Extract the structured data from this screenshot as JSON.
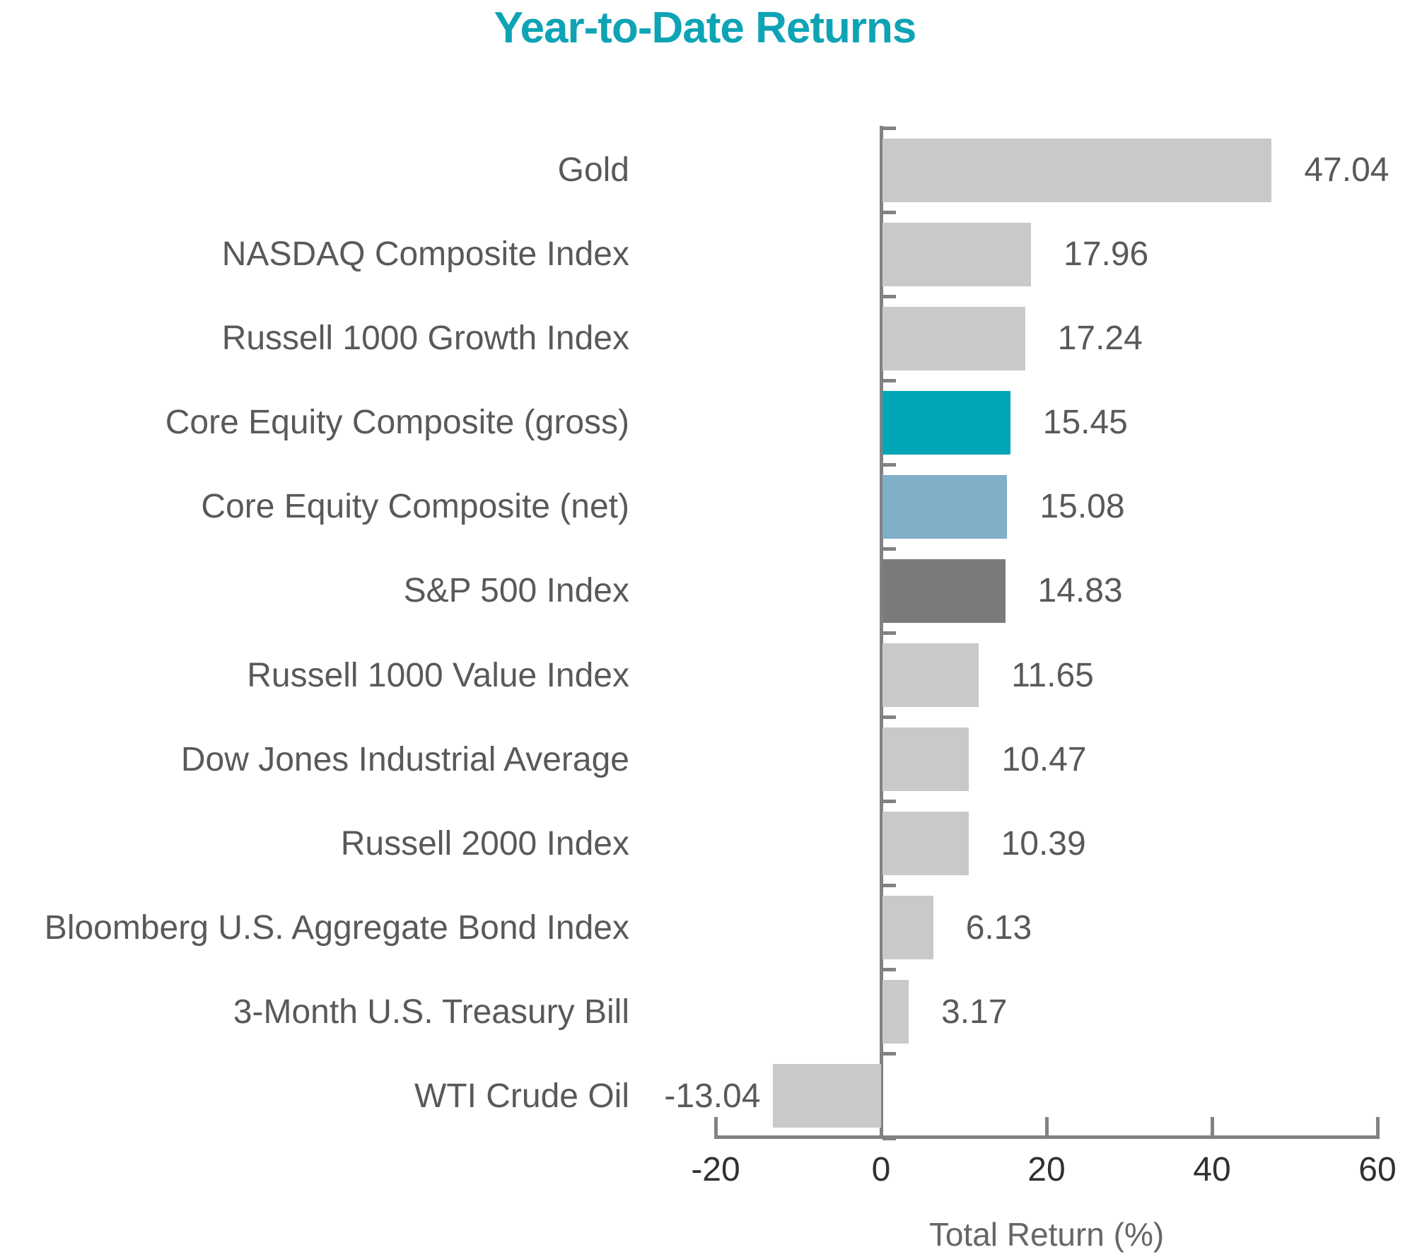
{
  "chart_data": {
    "type": "bar",
    "orientation": "horizontal",
    "title": "Year-to-Date Returns",
    "xlabel": "Total Return (%)",
    "xlim": [
      -20,
      60
    ],
    "xticks": [
      "-20",
      "0",
      "20",
      "40",
      "60"
    ],
    "xtick_values": [
      -20,
      0,
      20,
      40,
      60
    ],
    "grid": false,
    "legend": null,
    "categories": [
      "Gold",
      "NASDAQ Composite Index",
      "Russell 1000 Growth Index",
      "Core Equity Composite (gross)",
      "Core Equity Composite (net)",
      "S&P 500 Index",
      "Russell 1000 Value Index",
      "Dow Jones Industrial Average",
      "Russell 2000 Index",
      "Bloomberg U.S. Aggregate Bond Index",
      "3-Month U.S. Treasury Bill",
      "WTI Crude Oil"
    ],
    "values": [
      47.04,
      17.96,
      17.24,
      15.45,
      15.08,
      14.83,
      11.65,
      10.47,
      10.39,
      6.13,
      3.17,
      -13.04
    ],
    "value_labels": [
      "47.04",
      "17.96",
      "17.24",
      "15.45",
      "15.08",
      "14.83",
      "11.65",
      "10.47",
      "10.39",
      "6.13",
      "3.17",
      "-13.04"
    ],
    "bar_colors": [
      "#C9C9C9",
      "#C9C9C9",
      "#C9C9C9",
      "#00A6B6",
      "#80AFC7",
      "#7A7A7A",
      "#C9C9C9",
      "#C9C9C9",
      "#C9C9C9",
      "#C9C9C9",
      "#C9C9C9",
      "#C9C9C9"
    ]
  },
  "colors": {
    "title": "#0EA3B5",
    "axis": "#828282",
    "category_label": "#595959",
    "value_label": "#595959",
    "tick_label": "#303030",
    "axis_title": "#666666"
  }
}
